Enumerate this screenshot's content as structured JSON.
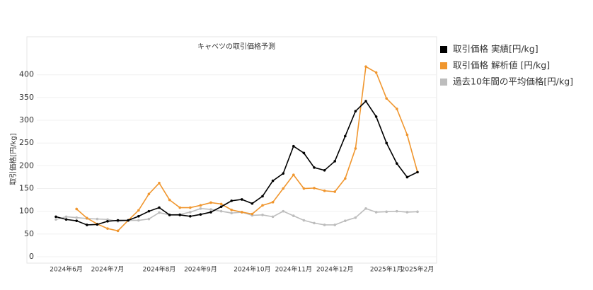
{
  "chart_data": {
    "type": "line",
    "title": "キャベツの取引価格予測",
    "y_label": "取引価格[円/kg]",
    "categories": [
      null,
      "2024年6月",
      null,
      null,
      null,
      "2024年7月",
      null,
      null,
      null,
      null,
      "2024年8月",
      null,
      null,
      null,
      "2024年9月",
      null,
      null,
      null,
      null,
      "2024年10月",
      null,
      null,
      null,
      "2024年11月",
      null,
      null,
      null,
      "2024年12月",
      null,
      null,
      null,
      null,
      "2025年1月",
      null,
      null,
      "2025年2月"
    ],
    "series": [
      {
        "name": "取引価格 実績[円/kg]",
        "color": "#000000",
        "values": [
          88,
          82,
          79,
          70,
          71,
          78,
          80,
          80,
          89,
          100,
          108,
          92,
          92,
          89,
          93,
          98,
          110,
          123,
          126,
          117,
          133,
          167,
          183,
          243,
          228,
          196,
          190,
          210,
          265,
          320,
          342,
          308,
          250,
          205,
          175,
          186
        ]
      },
      {
        "name": "取引価格 解析値 [円/kg]",
        "color": "#f0962e",
        "values": [
          null,
          null,
          105,
          85,
          72,
          62,
          57,
          80,
          102,
          138,
          162,
          125,
          108,
          108,
          113,
          119,
          116,
          103,
          98,
          94,
          113,
          120,
          150,
          180,
          150,
          151,
          145,
          143,
          172,
          238,
          418,
          405,
          348,
          325,
          268,
          186
        ]
      },
      {
        "name": "過去10年間の平均価格[円/kg]",
        "color": "#bdbdbd",
        "values": [
          82,
          88,
          86,
          84,
          83,
          82,
          78,
          80,
          80,
          83,
          97,
          92,
          93,
          98,
          106,
          104,
          100,
          96,
          98,
          91,
          92,
          88,
          100,
          90,
          80,
          74,
          70,
          70,
          79,
          86,
          106,
          98,
          99,
          100,
          98,
          99
        ]
      }
    ],
    "ylim": [
      -14,
      440
    ],
    "yticks": [
      0,
      50,
      100,
      150,
      200,
      250,
      300,
      350,
      400
    ],
    "grid": true
  }
}
